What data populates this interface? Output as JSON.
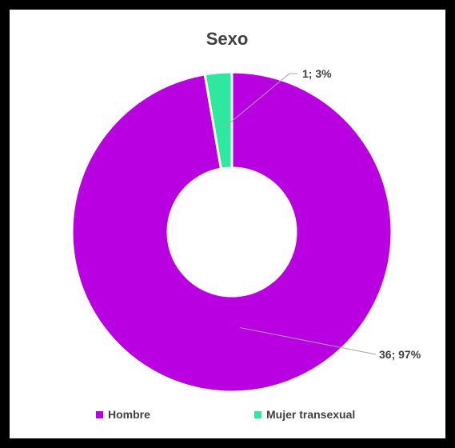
{
  "chart_data": {
    "type": "pie",
    "title": "Sexo",
    "donut": true,
    "legend_position": "bottom",
    "slices": [
      {
        "name": "Hombre",
        "value": 36,
        "percent": 97,
        "color": "#b900e0",
        "label": "36; 97%"
      },
      {
        "name": "Mujer transexual",
        "value": 1,
        "percent": 3,
        "color": "#2ee8a0",
        "label": "1; 3%"
      }
    ]
  }
}
